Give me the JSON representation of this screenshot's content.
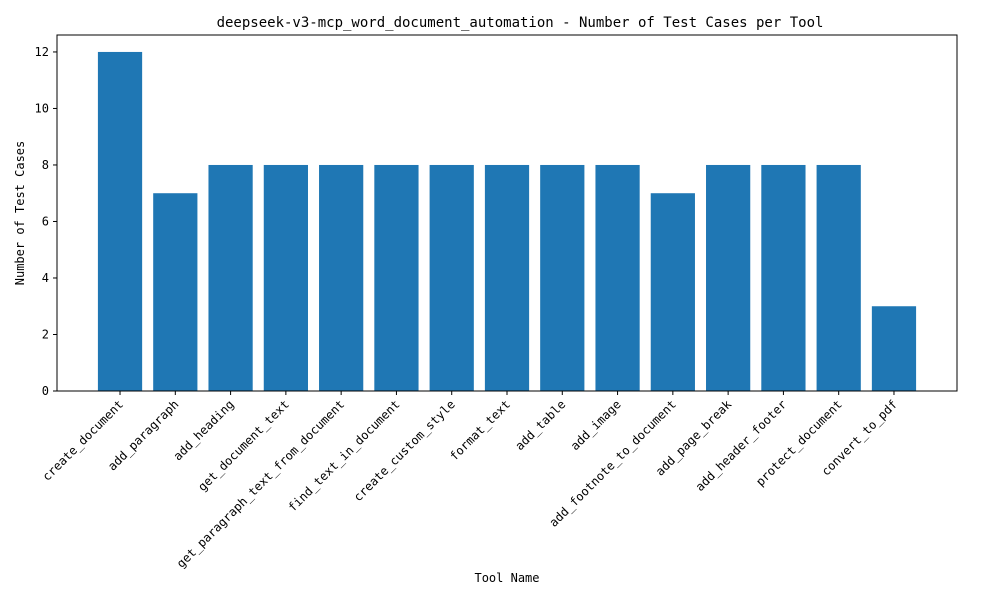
{
  "chart_data": {
    "type": "bar",
    "title": "deepseek-v3-mcp_word_document_automation - Number of Test Cases per Tool",
    "xlabel": "Tool Name",
    "ylabel": "Number of Test Cases",
    "categories": [
      "create_document",
      "add_paragraph",
      "add_heading",
      "get_document_text",
      "get_paragraph_text_from_document",
      "find_text_in_document",
      "create_custom_style",
      "format_text",
      "add_table",
      "add_image",
      "add_footnote_to_document",
      "add_page_break",
      "add_header_footer",
      "protect_document",
      "convert_to_pdf"
    ],
    "values": [
      12,
      7,
      8,
      8,
      8,
      8,
      8,
      8,
      8,
      8,
      7,
      8,
      8,
      8,
      3
    ],
    "ylim": [
      0,
      12.6
    ],
    "yticks": [
      0,
      2,
      4,
      6,
      8,
      10,
      12
    ],
    "grid": false,
    "legend": "none",
    "bar_color": "#1f77b4"
  }
}
